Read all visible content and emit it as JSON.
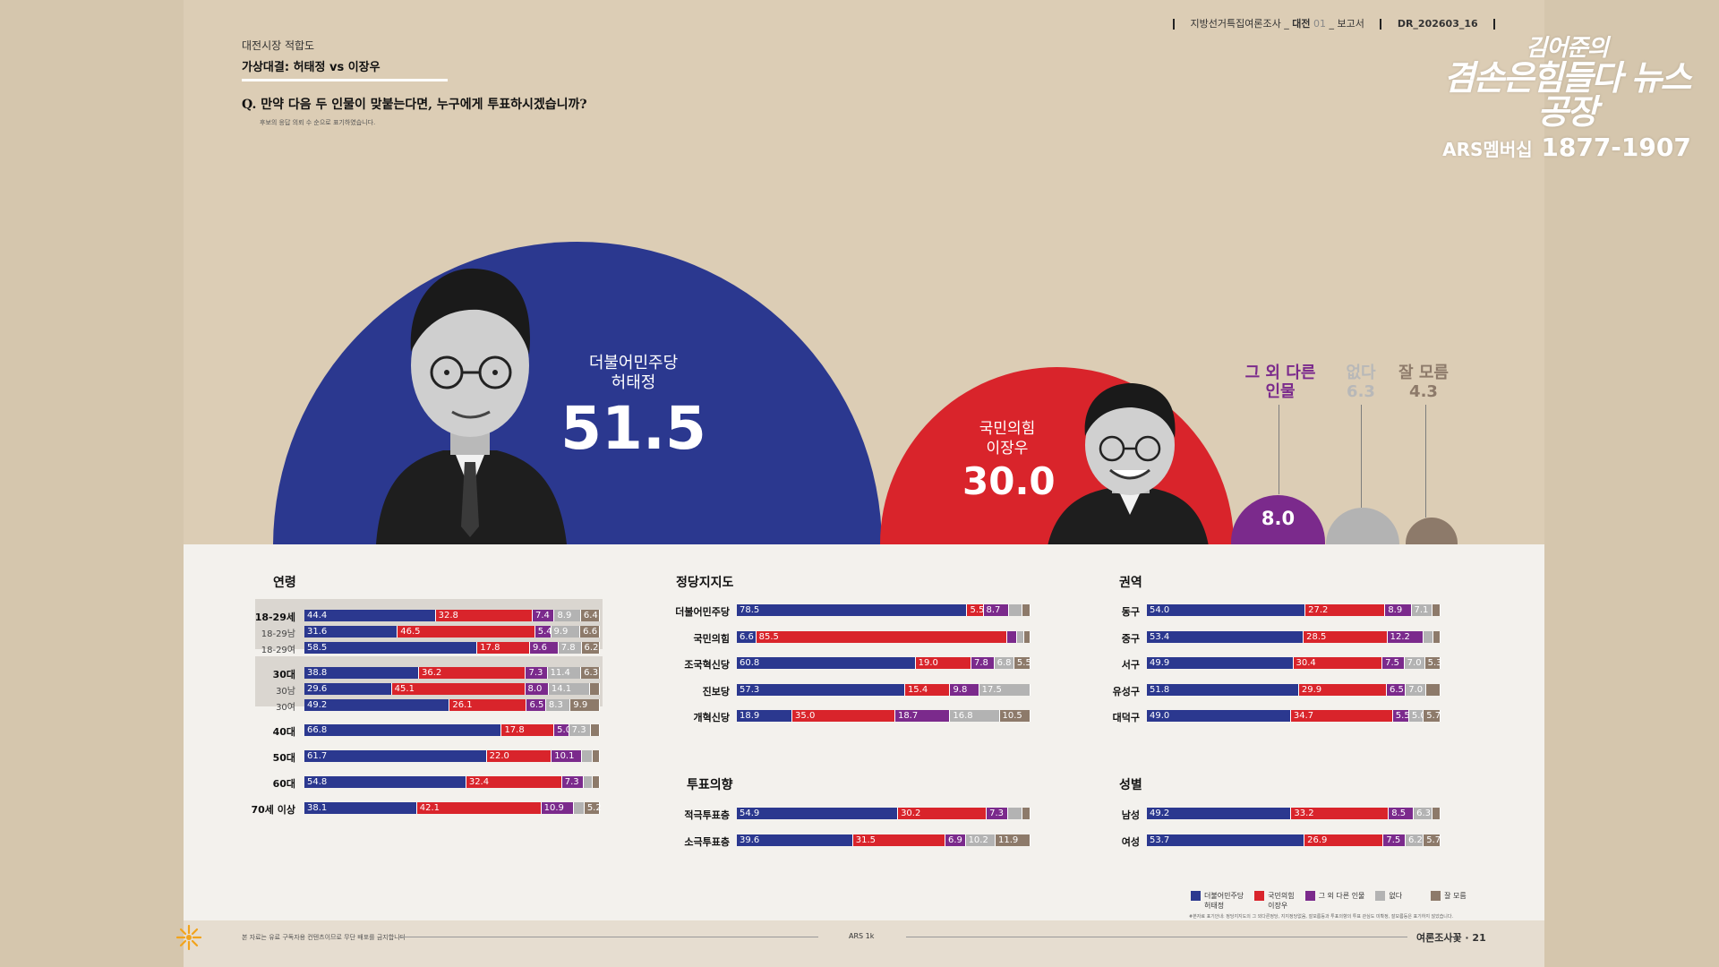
{
  "header": {
    "series": "지방선거특집여론조사",
    "region": "대전",
    "issue": "01",
    "doc": "보고서",
    "code": "DR_202603_16"
  },
  "logo": {
    "line1": "김어준의",
    "line2": "겸손은힘들다 뉴스공장",
    "line3_prefix": "ARS멤버십",
    "line3_number": "1877-1907"
  },
  "survey": {
    "label": "대전시장 적합도",
    "title": "가상대결: 허태정 vs 이장우",
    "question": "Q. 만약 다음 두 인물이 맞붙는다면, 누구에게 투표하시겠습니까?",
    "note": "후보의 응답 의뢰 수 순으로 표기하였습니다."
  },
  "colors": {
    "heo": "#2b388f",
    "lee": "#d9242b",
    "other": "#7b2a8c",
    "none": "#b3b3b3",
    "unsure": "#8d7a6a"
  },
  "chart_data": [
    {
      "type": "bar",
      "subtype": "overall-circles",
      "categories": [
        "더불어민주당 허태정",
        "국민의힘 이장우",
        "그 외 다른 인물",
        "없다",
        "잘 모름"
      ],
      "values": [
        51.5,
        30.0,
        8.0,
        6.3,
        4.3
      ],
      "labels": {
        "heo_party": "더불어민주당",
        "heo_name": "허태정",
        "lee_party": "국민의힘",
        "lee_name": "이장우",
        "other_l1": "그 외 다른",
        "other_l2": "인물",
        "none": "없다",
        "unsure": "잘 모름"
      },
      "display": {
        "heo": "51.5",
        "lee": "30.0",
        "other": "8.0",
        "none": "6.3",
        "unsure": "4.3"
      }
    },
    {
      "type": "bar",
      "subtype": "stacked-horizontal",
      "title": "연령",
      "series_order": [
        "허태정",
        "이장우",
        "그 외 다른 인물",
        "없다",
        "잘 모름"
      ],
      "rows": [
        {
          "label": "18-29세",
          "values": [
            44.4,
            32.8,
            7.4,
            8.9,
            6.4
          ],
          "shown": [
            "44.4",
            "32.8",
            "7.4",
            "8.9",
            "6.4"
          ]
        },
        {
          "label": "18-29남",
          "values": [
            31.6,
            46.5,
            5.4,
            9.9,
            6.6
          ],
          "shown": [
            "31.6",
            "46.5",
            "5.4",
            "9.9",
            "6.6"
          ]
        },
        {
          "label": "18-29여",
          "values": [
            58.5,
            17.8,
            9.6,
            7.8,
            6.2
          ],
          "shown": [
            "58.5",
            "17.8",
            "9.6",
            "7.8",
            "6.2"
          ]
        },
        {
          "label": "30대",
          "values": [
            38.8,
            36.2,
            7.3,
            11.4,
            6.3
          ],
          "shown": [
            "38.8",
            "36.2",
            "7.3",
            "11.4",
            "6.3"
          ]
        },
        {
          "label": "30남",
          "values": [
            29.6,
            45.1,
            8.0,
            14.1,
            3.2
          ],
          "shown": [
            "29.6",
            "45.1",
            "8.0",
            "14.1",
            ""
          ]
        },
        {
          "label": "30여",
          "values": [
            49.2,
            26.1,
            6.5,
            8.3,
            9.9
          ],
          "shown": [
            "49.2",
            "26.1",
            "6.5",
            "8.3",
            "9.9"
          ]
        },
        {
          "label": "40대",
          "values": [
            66.8,
            17.8,
            5.0,
            7.3,
            3.1
          ],
          "shown": [
            "66.8",
            "17.8",
            "5.0",
            "7.3",
            ""
          ]
        },
        {
          "label": "50대",
          "values": [
            61.7,
            22.0,
            10.1,
            3.8,
            2.4
          ],
          "shown": [
            "61.7",
            "22.0",
            "10.1",
            "",
            ""
          ]
        },
        {
          "label": "60대",
          "values": [
            54.8,
            32.4,
            7.3,
            3.2,
            2.3
          ],
          "shown": [
            "54.8",
            "32.4",
            "7.3",
            "",
            ""
          ]
        },
        {
          "label": "70세 이상",
          "values": [
            38.1,
            42.1,
            10.9,
            3.7,
            5.2
          ],
          "shown": [
            "38.1",
            "42.1",
            "10.9",
            "",
            "5.2"
          ]
        }
      ]
    },
    {
      "type": "bar",
      "subtype": "stacked-horizontal",
      "title": "정당지지도",
      "rows": [
        {
          "label": "더불어민주당",
          "values": [
            78.5,
            5.5,
            8.7,
            4.5,
            2.8
          ],
          "shown": [
            "78.5",
            "5.5",
            "8.7",
            "",
            ""
          ]
        },
        {
          "label": "국민의힘",
          "values": [
            6.6,
            85.5,
            3.3,
            2.5,
            2.1
          ],
          "shown": [
            "6.6",
            "85.5",
            "",
            "",
            ""
          ]
        },
        {
          "label": "조국혁신당",
          "values": [
            60.8,
            19.0,
            7.8,
            6.8,
            5.5
          ],
          "shown": [
            "60.8",
            "19.0",
            "7.8",
            "6.8",
            "5.5"
          ]
        },
        {
          "label": "진보당",
          "values": [
            57.3,
            15.4,
            9.8,
            17.5,
            0.0
          ],
          "shown": [
            "57.3",
            "15.4",
            "9.8",
            "17.5",
            ""
          ]
        },
        {
          "label": "개혁신당",
          "values": [
            18.9,
            35.0,
            18.7,
            16.8,
            10.5
          ],
          "shown": [
            "18.9",
            "35.0",
            "18.7",
            "16.8",
            "10.5"
          ]
        }
      ]
    },
    {
      "type": "bar",
      "subtype": "stacked-horizontal",
      "title": "투표의향",
      "rows": [
        {
          "label": "적극투표층",
          "values": [
            54.9,
            30.2,
            7.3,
            4.8,
            2.8
          ],
          "shown": [
            "54.9",
            "30.2",
            "7.3",
            "",
            ""
          ]
        },
        {
          "label": "소극투표층",
          "values": [
            39.6,
            31.5,
            6.9,
            10.2,
            11.9
          ],
          "shown": [
            "39.6",
            "31.5",
            "6.9",
            "10.2",
            "11.9"
          ]
        }
      ]
    },
    {
      "type": "bar",
      "subtype": "stacked-horizontal",
      "title": "권역",
      "rows": [
        {
          "label": "동구",
          "values": [
            54.0,
            27.2,
            8.9,
            7.1,
            2.8
          ],
          "shown": [
            "54.0",
            "27.2",
            "8.9",
            "7.1",
            ""
          ]
        },
        {
          "label": "중구",
          "values": [
            53.4,
            28.5,
            12.2,
            3.6,
            2.3
          ],
          "shown": [
            "53.4",
            "28.5",
            "12.2",
            "",
            ""
          ]
        },
        {
          "label": "서구",
          "values": [
            49.9,
            30.4,
            7.5,
            7.0,
            5.3
          ],
          "shown": [
            "49.9",
            "30.4",
            "7.5",
            "7.0",
            "5.3"
          ]
        },
        {
          "label": "유성구",
          "values": [
            51.8,
            29.9,
            6.5,
            7.0,
            4.8
          ],
          "shown": [
            "51.8",
            "29.9",
            "6.5",
            "7.0",
            ""
          ]
        },
        {
          "label": "대덕구",
          "values": [
            49.0,
            34.7,
            5.5,
            5.0,
            5.7
          ],
          "shown": [
            "49.0",
            "34.7",
            "5.5",
            "5.0",
            "5.7"
          ]
        }
      ]
    },
    {
      "type": "bar",
      "subtype": "stacked-horizontal",
      "title": "성별",
      "rows": [
        {
          "label": "남성",
          "values": [
            49.2,
            33.2,
            8.5,
            6.3,
            2.8
          ],
          "shown": [
            "49.2",
            "33.2",
            "8.5",
            "6.3",
            ""
          ]
        },
        {
          "label": "여성",
          "values": [
            53.7,
            26.9,
            7.5,
            6.2,
            5.7
          ],
          "shown": [
            "53.7",
            "26.9",
            "7.5",
            "6.2",
            "5.7"
          ]
        }
      ]
    }
  ],
  "legend": {
    "heo_l1": "더불어민주당",
    "heo_l2": "허태정",
    "lee_l1": "국민의힘",
    "lee_l2": "이장우",
    "other": "그 외 다른 인물",
    "none": "없다",
    "unsure": "잘 모름",
    "note": "#본자료 표기안내: 정당지지도의 그 외다른정당, 지지정당없음, 잘모름등과 투표의향의 투표 관심도 미확정, 잘모름등은 표기하지 않았습니다."
  },
  "footer": {
    "note": "본 자료는 유료 구독자용 컨텐츠이므로 무단 배포를 금지합니다",
    "center": "ARS 1k",
    "right": "여론조사꽃 · 21"
  }
}
